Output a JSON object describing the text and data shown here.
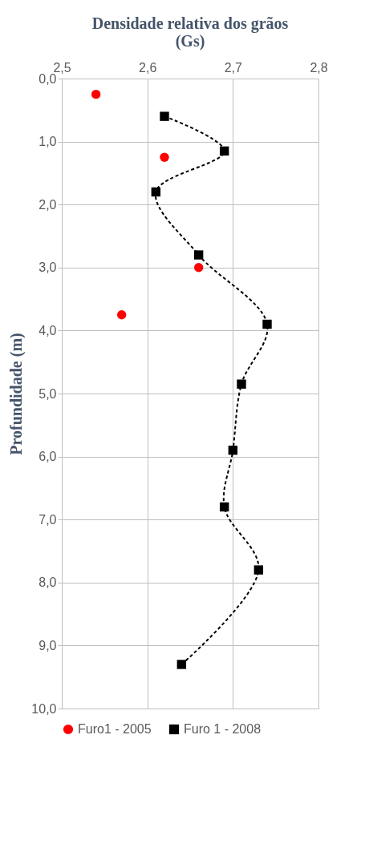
{
  "chart_data": {
    "type": "line",
    "title": [
      "Densidade relativa dos grãos",
      "(Gs)"
    ],
    "ylabel": "Profundidade (m)",
    "series": [
      {
        "name": "Furo1 - 2005",
        "type": "scatter",
        "color": "#ff0000",
        "marker": "circle",
        "x": [
          2.54,
          2.62,
          2.66,
          2.57
        ],
        "values": [
          0.25,
          1.25,
          3.0,
          3.75
        ]
      },
      {
        "name": "Furo 1 - 2008",
        "color": "#000000",
        "marker": "square",
        "line_style": "dashed",
        "x": [
          2.62,
          2.69,
          2.61,
          2.66,
          2.74,
          2.71,
          2.7,
          2.69,
          2.73,
          2.64
        ],
        "values": [
          0.6,
          1.15,
          1.8,
          2.8,
          3.9,
          4.85,
          5.9,
          6.8,
          7.8,
          9.3
        ]
      }
    ],
    "xlim": [
      2.5,
      2.8
    ],
    "xticks": [
      {
        "value": 2.5,
        "label": "2,5"
      },
      {
        "value": 2.6,
        "label": "2,6"
      },
      {
        "value": 2.7,
        "label": "2,7"
      },
      {
        "value": 2.8,
        "label": "2,8"
      }
    ],
    "ylim": [
      10,
      0
    ],
    "yticks": [
      {
        "value": 0,
        "label": "0,0"
      },
      {
        "value": 1,
        "label": "1,0"
      },
      {
        "value": 2,
        "label": "2,0"
      },
      {
        "value": 3,
        "label": "3,0"
      },
      {
        "value": 4,
        "label": "4,0"
      },
      {
        "value": 5,
        "label": "5,0"
      },
      {
        "value": 6,
        "label": "6,0"
      },
      {
        "value": 7,
        "label": "7,0"
      },
      {
        "value": 8,
        "label": "8,0"
      },
      {
        "value": 9,
        "label": "9,0"
      },
      {
        "value": 10,
        "label": "10,0"
      }
    ],
    "grid": true,
    "legend": "bottom"
  }
}
